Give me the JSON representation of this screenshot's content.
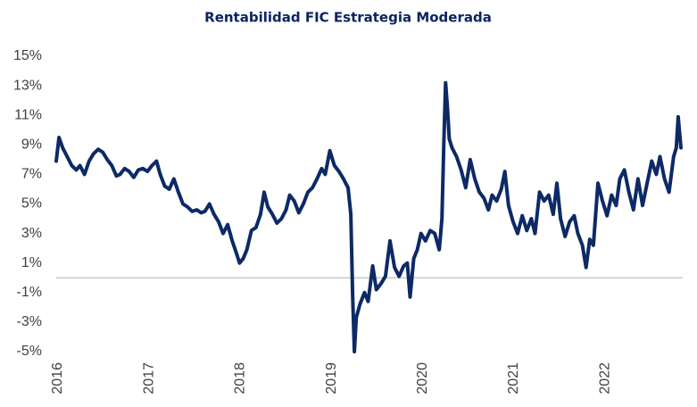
{
  "chart_data": {
    "type": "line",
    "title": "Rentabilidad FIC Estrategia Moderada",
    "x": [
      2016.0,
      2016.03,
      2016.07,
      2016.12,
      2016.17,
      2016.22,
      2016.26,
      2016.31,
      2016.36,
      2016.41,
      2016.46,
      2016.51,
      2016.56,
      2016.61,
      2016.66,
      2016.7,
      2016.75,
      2016.8,
      2016.85,
      2016.9,
      2016.95,
      2017.0,
      2017.05,
      2017.1,
      2017.14,
      2017.19,
      2017.24,
      2017.29,
      2017.34,
      2017.39,
      2017.44,
      2017.49,
      2017.54,
      2017.59,
      2017.63,
      2017.68,
      2017.73,
      2017.78,
      2017.83,
      2017.88,
      2017.93,
      2017.98,
      2018.01,
      2018.05,
      2018.09,
      2018.14,
      2018.19,
      2018.24,
      2018.28,
      2018.32,
      2018.37,
      2018.42,
      2018.47,
      2018.52,
      2018.56,
      2018.61,
      2018.66,
      2018.71,
      2018.76,
      2018.81,
      2018.86,
      2018.91,
      2018.95,
      2019.0,
      2019.05,
      2019.1,
      2019.15,
      2019.2,
      2019.23,
      2019.25,
      2019.27,
      2019.29,
      2019.33,
      2019.38,
      2019.42,
      2019.47,
      2019.51,
      2019.56,
      2019.61,
      2019.66,
      2019.71,
      2019.76,
      2019.81,
      2019.85,
      2019.88,
      2019.92,
      2019.96,
      2020.0,
      2020.05,
      2020.1,
      2020.15,
      2020.2,
      2020.23,
      2020.25,
      2020.27,
      2020.29,
      2020.31,
      2020.34,
      2020.39,
      2020.44,
      2020.49,
      2020.54,
      2020.59,
      2020.64,
      2020.69,
      2020.74,
      2020.78,
      2020.83,
      2020.88,
      2020.92,
      2020.96,
      2021.01,
      2021.06,
      2021.11,
      2021.16,
      2021.21,
      2021.25,
      2021.3,
      2021.35,
      2021.4,
      2021.45,
      2021.49,
      2021.53,
      2021.58,
      2021.63,
      2021.68,
      2021.72,
      2021.77,
      2021.81,
      2021.85,
      2021.89,
      2021.94,
      2021.99,
      2022.04,
      2022.09,
      2022.14,
      2022.18,
      2022.23,
      2022.28,
      2022.33,
      2022.38,
      2022.43,
      2022.48,
      2022.53,
      2022.58,
      2022.62,
      2022.67,
      2022.72,
      2022.77,
      2022.8,
      2022.82,
      2022.85
    ],
    "series": [
      {
        "color": "#0d2a66",
        "values": [
          7.9,
          9.5,
          8.8,
          8.2,
          7.6,
          7.3,
          7.6,
          7.0,
          7.9,
          8.4,
          8.7,
          8.5,
          8.0,
          7.6,
          6.9,
          7.0,
          7.4,
          7.2,
          6.8,
          7.3,
          7.4,
          7.2,
          7.6,
          7.9,
          7.0,
          6.2,
          6.0,
          6.7,
          5.8,
          5.0,
          4.8,
          4.5,
          4.6,
          4.4,
          4.5,
          5.0,
          4.3,
          3.8,
          3.0,
          3.6,
          2.5,
          1.6,
          1.0,
          1.3,
          1.9,
          3.2,
          3.4,
          4.3,
          5.8,
          4.8,
          4.3,
          3.7,
          4.0,
          4.6,
          5.6,
          5.2,
          4.4,
          5.0,
          5.8,
          6.1,
          6.7,
          7.4,
          7.0,
          8.6,
          7.6,
          7.2,
          6.7,
          6.1,
          4.3,
          -1.1,
          -5.0,
          -2.7,
          -1.8,
          -1.0,
          -1.6,
          0.8,
          -0.8,
          -0.4,
          0.1,
          2.5,
          0.7,
          0.1,
          0.8,
          1.0,
          -1.3,
          1.3,
          1.9,
          3.0,
          2.5,
          3.2,
          3.0,
          1.9,
          4.0,
          9.1,
          13.2,
          11.5,
          9.4,
          8.8,
          8.2,
          7.3,
          6.1,
          8.0,
          6.7,
          5.8,
          5.4,
          4.6,
          5.6,
          5.2,
          6.0,
          7.2,
          4.9,
          3.8,
          3.0,
          4.2,
          3.2,
          4.0,
          3.0,
          5.8,
          5.2,
          5.6,
          4.3,
          6.4,
          4.0,
          2.8,
          3.8,
          4.2,
          3.0,
          2.2,
          0.7,
          2.6,
          2.2,
          6.4,
          5.2,
          4.2,
          5.6,
          4.9,
          6.7,
          7.3,
          5.8,
          4.6,
          6.7,
          4.9,
          6.4,
          7.9,
          7.0,
          8.2,
          6.7,
          5.8,
          8.2,
          8.8,
          10.9,
          8.8
        ]
      }
    ],
    "xlim": [
      2016,
      2022.87
    ],
    "xticks": [
      2016,
      2017,
      2018,
      2019,
      2020,
      2021,
      2022
    ],
    "ylim": [
      -5,
      15
    ],
    "yticks": [
      {
        "value": -5,
        "label": "-5%"
      },
      {
        "value": -3,
        "label": "-3%"
      },
      {
        "value": -1,
        "label": "-1%"
      },
      {
        "value": 1,
        "label": "1%"
      },
      {
        "value": 3,
        "label": "3%"
      },
      {
        "value": 5,
        "label": "5%"
      },
      {
        "value": 7,
        "label": "7%"
      },
      {
        "value": 9,
        "label": "9%"
      },
      {
        "value": 11,
        "label": "11%"
      },
      {
        "value": 13,
        "label": "13%"
      },
      {
        "value": 15,
        "label": "15%"
      }
    ],
    "grid": false
  }
}
